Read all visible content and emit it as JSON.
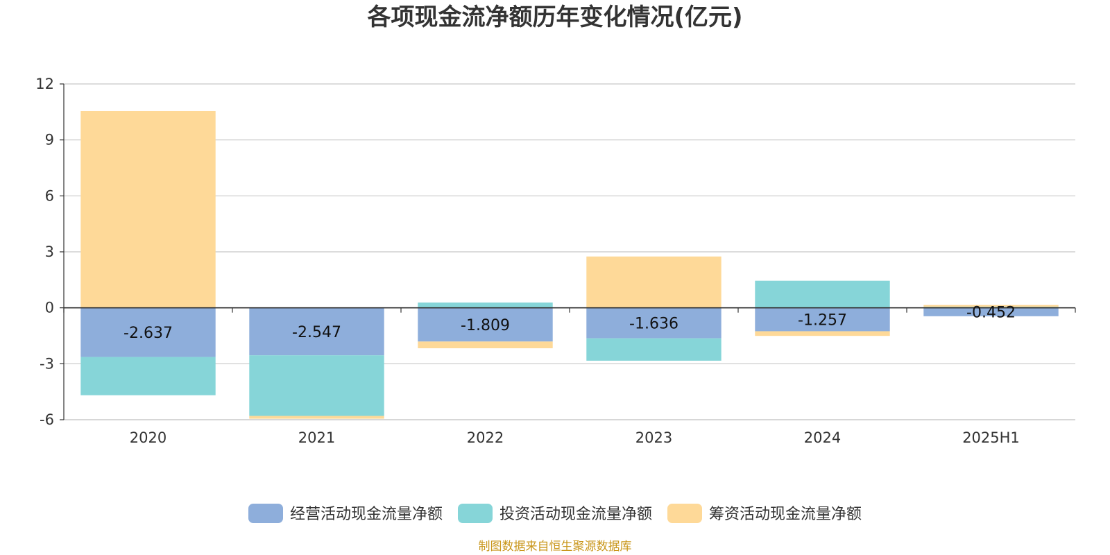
{
  "chart_data": {
    "type": "bar",
    "stacked": true,
    "title": "各项现金流净额历年变化情况(亿元)",
    "categories": [
      "2020",
      "2021",
      "2022",
      "2023",
      "2024",
      "2025H1"
    ],
    "series": [
      {
        "name": "经营活动现金流量净额",
        "color": "#8eaedb",
        "values": [
          -2.637,
          -2.547,
          -1.809,
          -1.636,
          -1.257,
          -0.452
        ],
        "show_labels": true
      },
      {
        "name": "投资活动现金流量净额",
        "color": "#86d5d8",
        "values": [
          -2.05,
          -3.25,
          0.28,
          -1.2,
          1.45,
          0.05
        ],
        "show_labels": false
      },
      {
        "name": "筹资活动现金流量净额",
        "color": "#fed998",
        "values": [
          10.55,
          -0.15,
          -0.36,
          2.75,
          -0.25,
          0.1
        ],
        "show_labels": false
      }
    ],
    "ylim": [
      -6,
      12
    ],
    "yticks": [
      -6,
      -3,
      0,
      3,
      6,
      9,
      12
    ],
    "ytick_labels": [
      "-6",
      "-3",
      "0",
      "3",
      "6",
      "9",
      "12"
    ],
    "xlabel": "",
    "ylabel": "",
    "grid": true,
    "legend_position": "bottom-center"
  },
  "footer": {
    "source": "制图数据来自恒生聚源数据库",
    "source_color": "#c9961a"
  }
}
